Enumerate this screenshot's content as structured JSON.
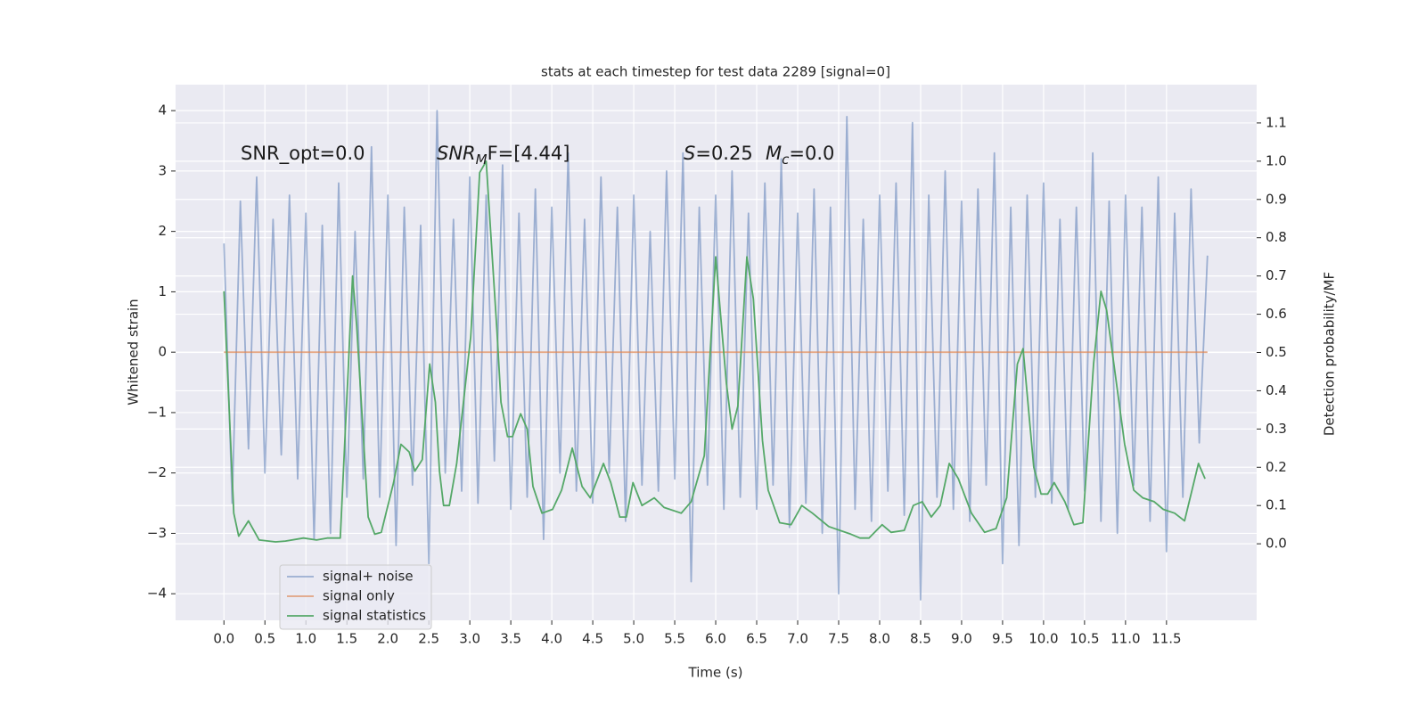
{
  "chart_data": {
    "type": "line",
    "title": "stats at each timestep for test data 2289 [signal=0]",
    "xlabel": "Time (s)",
    "ylabel": "Whitened strain",
    "y2label": "Detection probability/MF",
    "xlim": [
      -0.59,
      12.6
    ],
    "ylim": [
      -4.44,
      4.43
    ],
    "y2lim": [
      -0.2,
      1.2
    ],
    "xticks": [
      {
        "value": 0,
        "label": "0.0"
      },
      0.5,
      {
        "value": 1,
        "label": "1.0"
      },
      1.5,
      {
        "value": 2,
        "label": "2.0"
      },
      2.5,
      {
        "value": 3,
        "label": "3.0"
      },
      3.5,
      {
        "value": 4,
        "label": "4.0"
      },
      4.5,
      {
        "value": 5,
        "label": "5.0"
      },
      5.5,
      {
        "value": 6,
        "label": "6.0"
      },
      6.5,
      {
        "value": 7,
        "label": "7.0"
      },
      7.5,
      {
        "value": 8,
        "label": "8.0"
      },
      8.5,
      {
        "value": 9,
        "label": "9.0"
      },
      9.5,
      {
        "value": 10,
        "label": "10.0"
      },
      10.5,
      {
        "value": 11,
        "label": "11.0"
      },
      11.5
    ],
    "yticks": [
      {
        "value": -4,
        "label": "−4"
      },
      {
        "value": -3,
        "label": "−3"
      },
      {
        "value": -2,
        "label": "−2"
      },
      {
        "value": -1,
        "label": "−1"
      },
      0,
      1,
      2,
      3,
      4
    ],
    "y2ticks": [
      {
        "value": 0,
        "label": "0.0"
      },
      0.1,
      0.2,
      0.3,
      0.4,
      0.5,
      0.6,
      0.7,
      0.8,
      0.9,
      {
        "value": 1,
        "label": "1.0"
      },
      1.1
    ],
    "grid": true,
    "annotations": [
      {
        "parts": [
          {
            "text": "SNR_opt=0.0"
          }
        ]
      },
      {
        "parts": [
          {
            "text": "SNR",
            "style": "italic"
          },
          {
            "text": "M",
            "style": "italic-sub"
          },
          {
            "text": "F=[4.44]"
          }
        ]
      },
      {
        "parts": [
          {
            "text": "S",
            "style": "italic"
          },
          {
            "text": "=0.25"
          }
        ]
      },
      {
        "parts": [
          {
            "text": "M",
            "style": "italic"
          },
          {
            "text": "c",
            "style": "italic-sub"
          },
          {
            "text": "=0.0"
          }
        ]
      }
    ],
    "series": [
      {
        "name": "signal+ noise",
        "color": "#4c72b0",
        "opacity": 0.5,
        "x": [
          0,
          0.1,
          0.2,
          0.3,
          0.4,
          0.5,
          0.6,
          0.7,
          0.8,
          0.9,
          1,
          1.1,
          1.2,
          1.3,
          1.4,
          1.5,
          1.6,
          1.7,
          1.8,
          1.9,
          2,
          2.1,
          2.2,
          2.3,
          2.4,
          2.5,
          2.6,
          2.7,
          2.8,
          2.9,
          3,
          3.1,
          3.2,
          3.3,
          3.4,
          3.5,
          3.6,
          3.7,
          3.8,
          3.9,
          4,
          4.1,
          4.2,
          4.3,
          4.4,
          4.5,
          4.6,
          4.7,
          4.8,
          4.9,
          5,
          5.1,
          5.2,
          5.3,
          5.4,
          5.5,
          5.6,
          5.7,
          5.8,
          5.9,
          6,
          6.1,
          6.2,
          6.3,
          6.4,
          6.5,
          6.6,
          6.7,
          6.8,
          6.9,
          7,
          7.1,
          7.2,
          7.3,
          7.4,
          7.5,
          7.6,
          7.7,
          7.8,
          7.9,
          8,
          8.1,
          8.2,
          8.3,
          8.4,
          8.5,
          8.6,
          8.7,
          8.8,
          8.9,
          9,
          9.1,
          9.2,
          9.3,
          9.4,
          9.5,
          9.6,
          9.7,
          9.8,
          9.9,
          10,
          10.1,
          10.2,
          10.3,
          10.4,
          10.5,
          10.6,
          10.7,
          10.8,
          10.9,
          11,
          11.1,
          11.2,
          11.3,
          11.4,
          11.5,
          11.6,
          11.7,
          11.8,
          11.9,
          12
        ],
        "values": [
          1.8,
          -2.5,
          2.5,
          -1.6,
          2.9,
          -2.0,
          2.2,
          -1.7,
          2.6,
          -2.1,
          2.3,
          -3.1,
          2.1,
          -3.0,
          2.8,
          -2.4,
          2.0,
          -2.1,
          3.4,
          -2.4,
          2.6,
          -3.2,
          2.4,
          -2.2,
          2.1,
          -3.5,
          4.0,
          -2.0,
          2.2,
          -2.3,
          2.9,
          -2.5,
          2.6,
          -1.8,
          3.1,
          -2.6,
          2.3,
          -2.4,
          2.7,
          -3.1,
          2.4,
          -2.0,
          3.3,
          -2.3,
          2.2,
          -2.5,
          2.9,
          -2.0,
          2.4,
          -2.8,
          2.6,
          -2.2,
          2.0,
          -2.3,
          3.0,
          -2.1,
          3.3,
          -3.8,
          2.4,
          -2.2,
          2.6,
          -2.6,
          3.0,
          -2.4,
          2.3,
          -2.6,
          2.8,
          -2.2,
          3.2,
          -2.9,
          2.3,
          -2.5,
          2.7,
          -3.0,
          2.4,
          -4.0,
          3.9,
          -2.6,
          2.2,
          -2.8,
          2.6,
          -2.3,
          2.8,
          -2.7,
          3.8,
          -4.1,
          2.6,
          -2.4,
          3.0,
          -2.6,
          2.5,
          -2.8,
          2.7,
          -2.2,
          3.3,
          -3.5,
          2.4,
          -3.2,
          2.6,
          -2.4,
          2.8,
          -2.5,
          2.2,
          -2.6,
          2.4,
          -2.3,
          3.3,
          -2.8,
          2.5,
          -3.0,
          2.6,
          -2.2,
          2.4,
          -2.8,
          2.9,
          -3.3,
          2.3,
          -2.4,
          2.7,
          -1.5,
          1.6
        ]
      },
      {
        "name": "signal only",
        "color": "#dd8452",
        "opacity": 0.7,
        "x": [
          0,
          12
        ],
        "values": [
          0,
          0
        ]
      },
      {
        "name": "signal statistics",
        "color": "#55a868",
        "opacity": 1,
        "axis": "y2",
        "x": [
          0,
          0.12,
          0.18,
          0.3,
          0.43,
          0.63,
          0.75,
          0.97,
          1.13,
          1.26,
          1.42,
          1.57,
          1.62,
          1.76,
          1.84,
          1.92,
          2.07,
          2.16,
          2.26,
          2.33,
          2.42,
          2.51,
          2.58,
          2.63,
          2.68,
          2.75,
          2.84,
          3.01,
          3.12,
          3.2,
          3.33,
          3.38,
          3.46,
          3.52,
          3.62,
          3.7,
          3.77,
          3.88,
          4.01,
          4.12,
          4.25,
          4.37,
          4.47,
          4.63,
          4.72,
          4.83,
          4.91,
          4.99,
          5.1,
          5.25,
          5.37,
          5.58,
          5.7,
          5.86,
          6.0,
          6.13,
          6.2,
          6.27,
          6.38,
          6.46,
          6.57,
          6.64,
          6.78,
          6.92,
          7.05,
          7.18,
          7.38,
          7.65,
          7.76,
          7.87,
          8.03,
          8.14,
          8.3,
          8.41,
          8.52,
          8.63,
          8.74,
          8.85,
          8.96,
          9.12,
          9.28,
          9.42,
          9.55,
          9.68,
          9.75,
          9.88,
          9.97,
          10.05,
          10.13,
          10.26,
          10.37,
          10.48,
          10.61,
          10.7,
          10.77,
          10.99,
          11.1,
          11.21,
          11.35,
          11.46,
          11.6,
          11.72,
          11.89,
          11.97
        ],
        "values": [
          0.66,
          0.08,
          0.02,
          0.06,
          0.01,
          0.005,
          0.007,
          0.015,
          0.01,
          0.015,
          0.015,
          0.7,
          0.57,
          0.07,
          0.025,
          0.03,
          0.16,
          0.26,
          0.24,
          0.19,
          0.22,
          0.47,
          0.37,
          0.19,
          0.1,
          0.1,
          0.21,
          0.54,
          0.97,
          1.0,
          0.56,
          0.37,
          0.28,
          0.28,
          0.34,
          0.3,
          0.15,
          0.08,
          0.09,
          0.14,
          0.25,
          0.15,
          0.12,
          0.21,
          0.16,
          0.07,
          0.07,
          0.16,
          0.1,
          0.12,
          0.095,
          0.08,
          0.11,
          0.23,
          0.75,
          0.42,
          0.3,
          0.36,
          0.75,
          0.64,
          0.27,
          0.14,
          0.055,
          0.05,
          0.1,
          0.08,
          0.045,
          0.025,
          0.015,
          0.015,
          0.05,
          0.03,
          0.035,
          0.1,
          0.11,
          0.07,
          0.1,
          0.21,
          0.17,
          0.08,
          0.03,
          0.04,
          0.12,
          0.47,
          0.51,
          0.2,
          0.13,
          0.13,
          0.16,
          0.11,
          0.05,
          0.055,
          0.47,
          0.66,
          0.61,
          0.26,
          0.14,
          0.12,
          0.11,
          0.09,
          0.08,
          0.06,
          0.21,
          0.17
        ]
      }
    ]
  }
}
